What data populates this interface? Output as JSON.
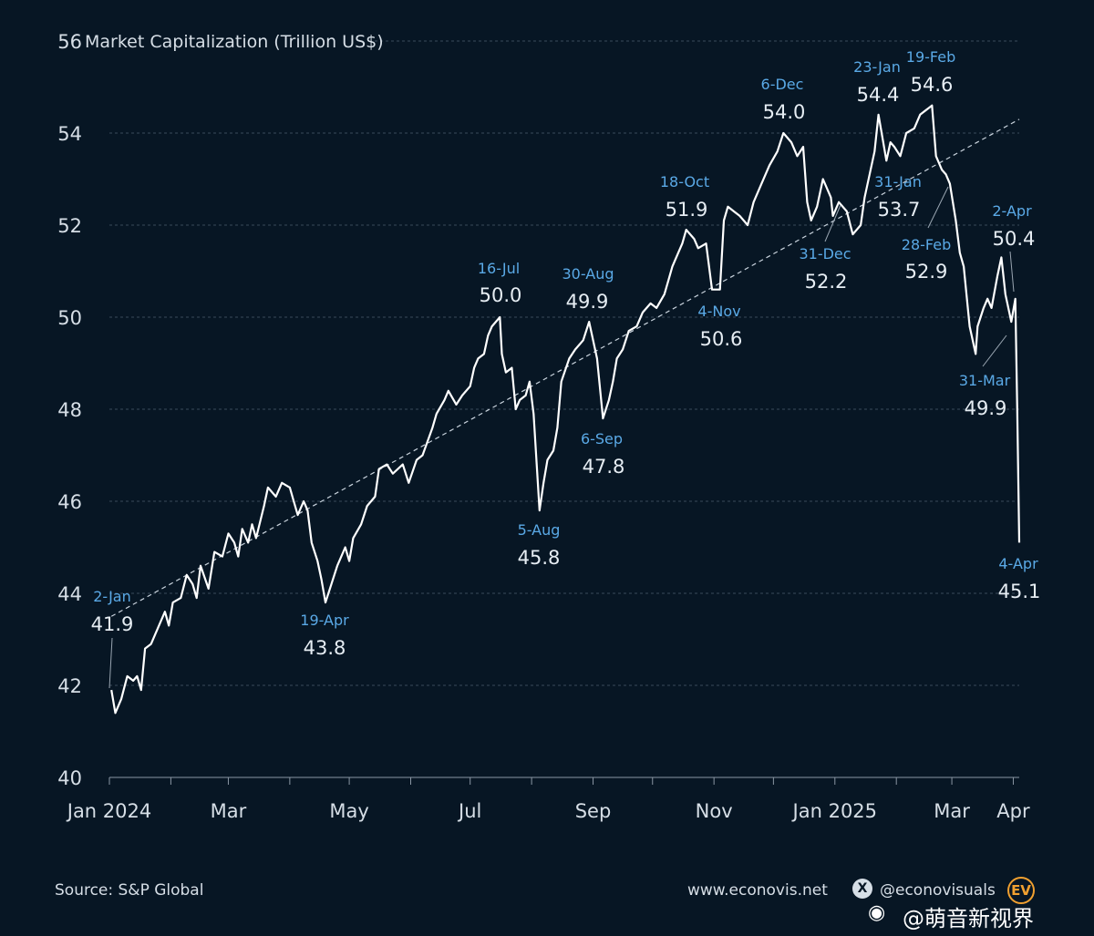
{
  "chart_data": {
    "type": "line",
    "title": "Market Capitalization (Trillion US$)",
    "ylim": [
      40,
      56
    ],
    "yticks": [
      40,
      42,
      44,
      46,
      48,
      50,
      52,
      54,
      56
    ],
    "x_tick_labels": [
      {
        "label": "Jan 2024",
        "date": "2024-01-01"
      },
      {
        "label": "Mar",
        "date": "2024-03-01"
      },
      {
        "label": "May",
        "date": "2024-05-01"
      },
      {
        "label": "Jul",
        "date": "2024-07-01"
      },
      {
        "label": "Sep",
        "date": "2024-09-01"
      },
      {
        "label": "Nov",
        "date": "2024-11-01"
      },
      {
        "label": "Jan 2025",
        "date": "2025-01-01"
      },
      {
        "label": "Mar",
        "date": "2025-03-01"
      },
      {
        "label": "Apr",
        "date": "2025-04-01"
      }
    ],
    "xlim": [
      "2024-01-01",
      "2025-04-04"
    ],
    "grid": "horizontal dashed",
    "trendline": {
      "start": {
        "date": "2024-01-02",
        "value": 43.5
      },
      "end": {
        "date": "2025-04-04",
        "value": 54.3
      }
    },
    "series": [
      {
        "points": [
          [
            "2024-01-02",
            41.9
          ],
          [
            "2024-01-04",
            41.4
          ],
          [
            "2024-01-07",
            41.7
          ],
          [
            "2024-01-10",
            42.2
          ],
          [
            "2024-01-13",
            42.1
          ],
          [
            "2024-01-15",
            42.2
          ],
          [
            "2024-01-17",
            41.9
          ],
          [
            "2024-01-19",
            42.8
          ],
          [
            "2024-01-22",
            42.9
          ],
          [
            "2024-01-25",
            43.2
          ],
          [
            "2024-01-29",
            43.6
          ],
          [
            "2024-01-31",
            43.3
          ],
          [
            "2024-02-02",
            43.8
          ],
          [
            "2024-02-06",
            43.9
          ],
          [
            "2024-02-09",
            44.4
          ],
          [
            "2024-02-12",
            44.2
          ],
          [
            "2024-02-14",
            43.9
          ],
          [
            "2024-02-16",
            44.6
          ],
          [
            "2024-02-20",
            44.1
          ],
          [
            "2024-02-23",
            44.9
          ],
          [
            "2024-02-27",
            44.8
          ],
          [
            "2024-03-01",
            45.3
          ],
          [
            "2024-03-04",
            45.1
          ],
          [
            "2024-03-06",
            44.8
          ],
          [
            "2024-03-08",
            45.4
          ],
          [
            "2024-03-11",
            45.1
          ],
          [
            "2024-03-13",
            45.5
          ],
          [
            "2024-03-15",
            45.2
          ],
          [
            "2024-03-19",
            45.9
          ],
          [
            "2024-03-21",
            46.3
          ],
          [
            "2024-03-25",
            46.1
          ],
          [
            "2024-03-28",
            46.4
          ],
          [
            "2024-04-01",
            46.3
          ],
          [
            "2024-04-03",
            46.0
          ],
          [
            "2024-04-05",
            45.7
          ],
          [
            "2024-04-08",
            46.0
          ],
          [
            "2024-04-10",
            45.8
          ],
          [
            "2024-04-12",
            45.1
          ],
          [
            "2024-04-15",
            44.7
          ],
          [
            "2024-04-17",
            44.3
          ],
          [
            "2024-04-19",
            43.8
          ],
          [
            "2024-04-22",
            44.2
          ],
          [
            "2024-04-25",
            44.6
          ],
          [
            "2024-04-29",
            45.0
          ],
          [
            "2024-05-01",
            44.7
          ],
          [
            "2024-05-03",
            45.2
          ],
          [
            "2024-05-07",
            45.5
          ],
          [
            "2024-05-10",
            45.9
          ],
          [
            "2024-05-14",
            46.1
          ],
          [
            "2024-05-16",
            46.7
          ],
          [
            "2024-05-20",
            46.8
          ],
          [
            "2024-05-23",
            46.6
          ],
          [
            "2024-05-28",
            46.8
          ],
          [
            "2024-05-31",
            46.4
          ],
          [
            "2024-06-04",
            46.9
          ],
          [
            "2024-06-07",
            47.0
          ],
          [
            "2024-06-12",
            47.6
          ],
          [
            "2024-06-14",
            47.9
          ],
          [
            "2024-06-18",
            48.2
          ],
          [
            "2024-06-20",
            48.4
          ],
          [
            "2024-06-24",
            48.1
          ],
          [
            "2024-06-27",
            48.3
          ],
          [
            "2024-07-01",
            48.5
          ],
          [
            "2024-07-03",
            48.9
          ],
          [
            "2024-07-05",
            49.1
          ],
          [
            "2024-07-08",
            49.2
          ],
          [
            "2024-07-10",
            49.6
          ],
          [
            "2024-07-12",
            49.8
          ],
          [
            "2024-07-16",
            50.0
          ],
          [
            "2024-07-17",
            49.2
          ],
          [
            "2024-07-19",
            48.8
          ],
          [
            "2024-07-22",
            48.9
          ],
          [
            "2024-07-24",
            48.0
          ],
          [
            "2024-07-26",
            48.2
          ],
          [
            "2024-07-29",
            48.3
          ],
          [
            "2024-07-31",
            48.6
          ],
          [
            "2024-08-02",
            47.9
          ],
          [
            "2024-08-05",
            45.8
          ],
          [
            "2024-08-07",
            46.4
          ],
          [
            "2024-08-09",
            46.9
          ],
          [
            "2024-08-12",
            47.1
          ],
          [
            "2024-08-14",
            47.6
          ],
          [
            "2024-08-16",
            48.6
          ],
          [
            "2024-08-20",
            49.1
          ],
          [
            "2024-08-23",
            49.3
          ],
          [
            "2024-08-27",
            49.5
          ],
          [
            "2024-08-30",
            49.9
          ],
          [
            "2024-09-03",
            49.1
          ],
          [
            "2024-09-06",
            47.8
          ],
          [
            "2024-09-09",
            48.2
          ],
          [
            "2024-09-11",
            48.6
          ],
          [
            "2024-09-13",
            49.1
          ],
          [
            "2024-09-16",
            49.3
          ],
          [
            "2024-09-19",
            49.7
          ],
          [
            "2024-09-23",
            49.8
          ],
          [
            "2024-09-26",
            50.1
          ],
          [
            "2024-09-30",
            50.3
          ],
          [
            "2024-10-03",
            50.2
          ],
          [
            "2024-10-07",
            50.5
          ],
          [
            "2024-10-09",
            50.8
          ],
          [
            "2024-10-11",
            51.1
          ],
          [
            "2024-10-14",
            51.4
          ],
          [
            "2024-10-16",
            51.6
          ],
          [
            "2024-10-18",
            51.9
          ],
          [
            "2024-10-22",
            51.7
          ],
          [
            "2024-10-24",
            51.5
          ],
          [
            "2024-10-28",
            51.6
          ],
          [
            "2024-10-31",
            50.6
          ],
          [
            "2024-11-04",
            50.6
          ],
          [
            "2024-11-06",
            52.1
          ],
          [
            "2024-11-08",
            52.4
          ],
          [
            "2024-11-11",
            52.3
          ],
          [
            "2024-11-14",
            52.2
          ],
          [
            "2024-11-18",
            52.0
          ],
          [
            "2024-11-21",
            52.5
          ],
          [
            "2024-11-25",
            52.9
          ],
          [
            "2024-11-29",
            53.3
          ],
          [
            "2024-12-03",
            53.6
          ],
          [
            "2024-12-06",
            54.0
          ],
          [
            "2024-12-10",
            53.8
          ],
          [
            "2024-12-13",
            53.5
          ],
          [
            "2024-12-16",
            53.7
          ],
          [
            "2024-12-18",
            52.5
          ],
          [
            "2024-12-20",
            52.1
          ],
          [
            "2024-12-23",
            52.4
          ],
          [
            "2024-12-26",
            53.0
          ],
          [
            "2024-12-30",
            52.6
          ],
          [
            "2024-12-31",
            52.2
          ],
          [
            "2025-01-03",
            52.5
          ],
          [
            "2025-01-07",
            52.3
          ],
          [
            "2025-01-10",
            51.8
          ],
          [
            "2025-01-14",
            52.0
          ],
          [
            "2025-01-16",
            52.6
          ],
          [
            "2025-01-21",
            53.6
          ],
          [
            "2025-01-23",
            54.4
          ],
          [
            "2025-01-27",
            53.4
          ],
          [
            "2025-01-29",
            53.8
          ],
          [
            "2025-01-31",
            53.7
          ],
          [
            "2025-02-03",
            53.5
          ],
          [
            "2025-02-06",
            54.0
          ],
          [
            "2025-02-10",
            54.1
          ],
          [
            "2025-02-13",
            54.4
          ],
          [
            "2025-02-19",
            54.6
          ],
          [
            "2025-02-21",
            53.5
          ],
          [
            "2025-02-24",
            53.2
          ],
          [
            "2025-02-26",
            53.1
          ],
          [
            "2025-02-28",
            52.9
          ],
          [
            "2025-03-03",
            52.1
          ],
          [
            "2025-03-05",
            51.4
          ],
          [
            "2025-03-07",
            51.1
          ],
          [
            "2025-03-10",
            49.8
          ],
          [
            "2025-03-13",
            49.2
          ],
          [
            "2025-03-14",
            49.8
          ],
          [
            "2025-03-17",
            50.2
          ],
          [
            "2025-03-19",
            50.4
          ],
          [
            "2025-03-21",
            50.2
          ],
          [
            "2025-03-24",
            50.9
          ],
          [
            "2025-03-26",
            51.3
          ],
          [
            "2025-03-28",
            50.5
          ],
          [
            "2025-03-31",
            49.9
          ],
          [
            "2025-04-02",
            50.4
          ],
          [
            "2025-04-03",
            48.0
          ],
          [
            "2025-04-04",
            45.1
          ]
        ]
      }
    ],
    "annotations": [
      {
        "date_label": "2-Jan",
        "value_label": "41.9",
        "date": "2024-01-02",
        "value": 41.9
      },
      {
        "date_label": "19-Apr",
        "value_label": "43.8",
        "date": "2024-04-19",
        "value": 43.8
      },
      {
        "date_label": "16-Jul",
        "value_label": "50.0",
        "date": "2024-07-16",
        "value": 50.0
      },
      {
        "date_label": "5-Aug",
        "value_label": "45.8",
        "date": "2024-08-05",
        "value": 45.8
      },
      {
        "date_label": "30-Aug",
        "value_label": "49.9",
        "date": "2024-08-30",
        "value": 49.9
      },
      {
        "date_label": "6-Sep",
        "value_label": "47.8",
        "date": "2024-09-06",
        "value": 47.8
      },
      {
        "date_label": "18-Oct",
        "value_label": "51.9",
        "date": "2024-10-18",
        "value": 51.9
      },
      {
        "date_label": "4-Nov",
        "value_label": "50.6",
        "date": "2024-11-04",
        "value": 50.6
      },
      {
        "date_label": "6-Dec",
        "value_label": "54.0",
        "date": "2024-12-06",
        "value": 54.0
      },
      {
        "date_label": "31-Dec",
        "value_label": "52.2",
        "date": "2024-12-31",
        "value": 52.2
      },
      {
        "date_label": "23-Jan",
        "value_label": "54.4",
        "date": "2025-01-23",
        "value": 54.4
      },
      {
        "date_label": "31-Jan",
        "value_label": "53.7",
        "date": "2025-01-31",
        "value": 53.7
      },
      {
        "date_label": "19-Feb",
        "value_label": "54.6",
        "date": "2025-02-19",
        "value": 54.6
      },
      {
        "date_label": "28-Feb",
        "value_label": "52.9",
        "date": "2025-02-28",
        "value": 52.9
      },
      {
        "date_label": "2-Apr",
        "value_label": "50.4",
        "date": "2025-04-02",
        "value": 50.4
      },
      {
        "date_label": "31-Mar",
        "value_label": "49.9",
        "date": "2025-03-31",
        "value": 49.9
      },
      {
        "date_label": "4-Apr",
        "value_label": "45.1",
        "date": "2025-04-04",
        "value": 45.1
      }
    ]
  },
  "colors": {
    "background": "#071624",
    "line": "#ffffff",
    "date_label": "#5aa9e6",
    "value_label": "#e6edf3",
    "grid": "#3a4a5a",
    "axis_text": "#d6dee6",
    "logo_accent": "#f0a030"
  },
  "footer": {
    "source": "Source: S&P Global",
    "website": "www.econovis.net",
    "handle": "@econovisuals",
    "logo_text": "EV",
    "watermark": "@萌音新视界"
  }
}
